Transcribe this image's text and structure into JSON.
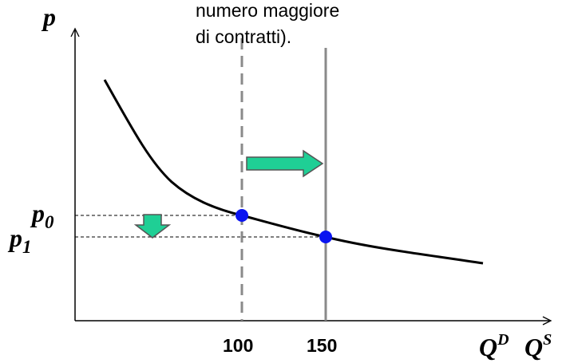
{
  "annotation": {
    "line1": "numero maggiore",
    "line2": "di contratti)."
  },
  "axes": {
    "y_label": "p",
    "x_label_demand": "Q",
    "x_label_demand_sup": "D",
    "x_label_supply": "Q",
    "x_label_supply_sup": "S"
  },
  "prices": {
    "p0_base": "p",
    "p0_sub": "0",
    "p1_base": "p",
    "p1_sub": "1"
  },
  "chart_data": {
    "type": "line",
    "x_ticks": [
      "100",
      "150"
    ],
    "supply_lines": [
      {
        "quantity": 100,
        "style": "dashed"
      },
      {
        "quantity": 150,
        "style": "solid"
      }
    ],
    "equilibria": [
      {
        "quantity": 100,
        "price_label": "p0"
      },
      {
        "quantity": 150,
        "price_label": "p1"
      }
    ],
    "arrows": [
      {
        "meaning": "supply shift right",
        "direction": "right"
      },
      {
        "meaning": "price falls",
        "direction": "down"
      }
    ],
    "colors": {
      "curve": "#000000",
      "points": "#0a14f0",
      "arrow_fill": "#1fcf95",
      "supply_line": "#8a8a8a"
    }
  }
}
